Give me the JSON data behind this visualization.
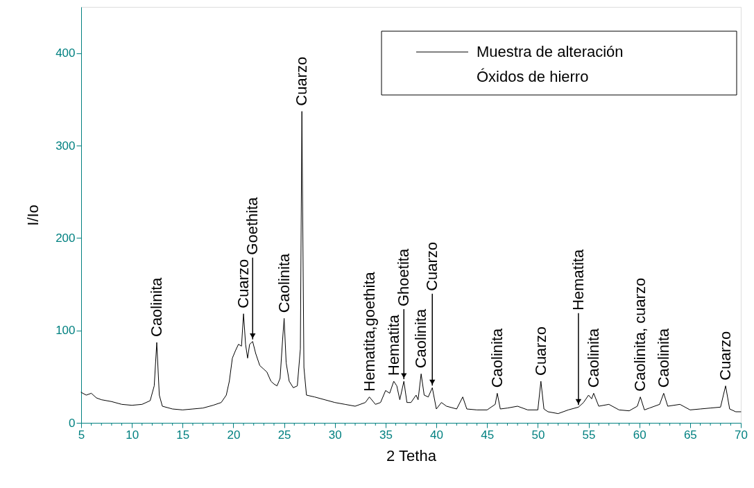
{
  "chart_data": {
    "type": "line",
    "xlabel": "2 Tetha",
    "ylabel": "I/Io",
    "xlim": [
      5,
      70
    ],
    "ylim": [
      0,
      450
    ],
    "xticks": [
      5,
      {
        "value": 6,
        "label": null
      },
      {
        "value": 7,
        "label": null
      },
      {
        "value": 8,
        "label": null
      },
      {
        "value": 9,
        "label": null
      },
      10,
      {
        "value": 11,
        "label": null
      },
      {
        "value": 12,
        "label": null
      },
      {
        "value": 13,
        "label": null
      },
      {
        "value": 14,
        "label": null
      },
      15,
      {
        "value": 16,
        "label": null
      },
      {
        "value": 17,
        "label": null
      },
      {
        "value": 18,
        "label": null
      },
      {
        "value": 19,
        "label": null
      },
      20,
      {
        "value": 21,
        "label": null
      },
      {
        "value": 22,
        "label": null
      },
      {
        "value": 23,
        "label": null
      },
      {
        "value": 24,
        "label": null
      },
      25,
      {
        "value": 26,
        "label": null
      },
      {
        "value": 27,
        "label": null
      },
      {
        "value": 28,
        "label": null
      },
      {
        "value": 29,
        "label": null
      },
      30,
      {
        "value": 31,
        "label": null
      },
      {
        "value": 32,
        "label": null
      },
      {
        "value": 33,
        "label": null
      },
      {
        "value": 34,
        "label": null
      },
      35,
      {
        "value": 36,
        "label": null
      },
      {
        "value": 37,
        "label": null
      },
      {
        "value": 38,
        "label": null
      },
      {
        "value": 39,
        "label": null
      },
      40,
      {
        "value": 41,
        "label": null
      },
      {
        "value": 42,
        "label": null
      },
      {
        "value": 43,
        "label": null
      },
      {
        "value": 44,
        "label": null
      },
      45,
      {
        "value": 46,
        "label": null
      },
      {
        "value": 47,
        "label": null
      },
      {
        "value": 48,
        "label": null
      },
      {
        "value": 49,
        "label": null
      },
      50,
      {
        "value": 51,
        "label": null
      },
      {
        "value": 52,
        "label": null
      },
      {
        "value": 53,
        "label": null
      },
      {
        "value": 54,
        "label": null
      },
      55,
      {
        "value": 56,
        "label": null
      },
      {
        "value": 57,
        "label": null
      },
      {
        "value": 58,
        "label": null
      },
      {
        "value": 59,
        "label": null
      },
      60,
      {
        "value": 61,
        "label": null
      },
      {
        "value": 62,
        "label": null
      },
      {
        "value": 63,
        "label": null
      },
      {
        "value": 64,
        "label": null
      },
      65,
      {
        "value": 66,
        "label": null
      },
      {
        "value": 67,
        "label": null
      },
      {
        "value": 68,
        "label": null
      },
      {
        "value": 69,
        "label": null
      },
      70
    ],
    "yticks": [
      0,
      100,
      200,
      300,
      400
    ],
    "grid": false,
    "legend": "top right",
    "marker": "none",
    "line_style": "solid",
    "series": [
      {
        "name": "Muestra de alteración Óxidos de hierro",
        "color": "#000000",
        "x": [
          5.0,
          5.5,
          6,
          6.5,
          7,
          8,
          9,
          10,
          11,
          11.8,
          12.2,
          12.45,
          12.7,
          13,
          14,
          15,
          16,
          17,
          18,
          18.8,
          19.3,
          19.6,
          19.9,
          20.2,
          20.5,
          20.8,
          21.0,
          21.2,
          21.4,
          21.6,
          21.9,
          22.2,
          22.6,
          23.0,
          23.3,
          23.7,
          24.0,
          24.3,
          24.6,
          24.85,
          25.0,
          25.2,
          25.5,
          25.9,
          26.3,
          26.6,
          26.75,
          26.95,
          27.2,
          28,
          29,
          30,
          31,
          32,
          33,
          33.4,
          34,
          34.5,
          35,
          35.4,
          35.8,
          36.1,
          36.4,
          36.8,
          37.1,
          37.5,
          38,
          38.2,
          38.5,
          38.8,
          39.2,
          39.6,
          40,
          40.5,
          41,
          42,
          42.6,
          43,
          44,
          45,
          45.8,
          46.0,
          46.3,
          47,
          48,
          49,
          50,
          50.3,
          50.6,
          51,
          52,
          53,
          54,
          54.5,
          55.0,
          55.3,
          55.5,
          56,
          57,
          58,
          59,
          59.8,
          60.1,
          60.5,
          61,
          62,
          62.4,
          62.8,
          64,
          65,
          66,
          67,
          68,
          68.5,
          68.9,
          69.5,
          70
        ],
        "values": [
          33,
          30,
          32,
          27,
          25,
          23,
          20,
          19,
          20,
          24,
          40,
          87,
          30,
          18,
          15,
          14,
          15,
          16,
          19,
          22,
          30,
          45,
          70,
          78,
          85,
          83,
          118,
          85,
          70,
          85,
          88,
          75,
          62,
          58,
          55,
          45,
          42,
          40,
          48,
          90,
          113,
          65,
          45,
          38,
          40,
          80,
          337,
          60,
          30,
          28,
          25,
          22,
          20,
          18,
          22,
          28,
          20,
          22,
          35,
          32,
          45,
          40,
          25,
          45,
          22,
          22,
          30,
          25,
          53,
          30,
          28,
          38,
          15,
          22,
          18,
          15,
          28,
          15,
          14,
          14,
          20,
          32,
          15,
          16,
          18,
          14,
          14,
          45,
          15,
          12,
          10,
          14,
          17,
          22,
          30,
          26,
          32,
          18,
          20,
          14,
          13,
          18,
          28,
          14,
          16,
          20,
          32,
          18,
          20,
          14,
          15,
          16,
          17,
          40,
          15,
          12,
          12
        ]
      }
    ],
    "annotations": [
      {
        "text": "Caolinita",
        "x": 12.45,
        "y": 87
      },
      {
        "text": "Cuarzo",
        "x": 21.0,
        "y": 118
      },
      {
        "text": "Goethita",
        "x": 21.9,
        "y": 88
      },
      {
        "text": "Caolinita",
        "x": 25.0,
        "y": 113
      },
      {
        "text": "Cuarzo",
        "x": 26.75,
        "y": 337
      },
      {
        "text": "Hematita,goethita",
        "x": 33.4,
        "y": 28
      },
      {
        "text": "Hematita",
        "x": 35.8,
        "y": 45
      },
      {
        "text": "Ghoetita",
        "x": 36.8,
        "y": 45
      },
      {
        "text": "Caolinita",
        "x": 38.5,
        "y": 53
      },
      {
        "text": "Cuarzo",
        "x": 39.6,
        "y": 38
      },
      {
        "text": "Caolinita",
        "x": 46.0,
        "y": 32
      },
      {
        "text": "Cuarzo",
        "x": 50.3,
        "y": 45
      },
      {
        "text": "Caolinita",
        "x": 55.5,
        "y": 32
      },
      {
        "text": "Hematita",
        "x": 54,
        "y": 17
      },
      {
        "text": "Caolinita, cuarzo",
        "x": 60.1,
        "y": 28
      },
      {
        "text": "Caolinita",
        "x": 62.4,
        "y": 32
      },
      {
        "text": "Cuarzo",
        "x": 68.5,
        "y": 40
      }
    ]
  }
}
